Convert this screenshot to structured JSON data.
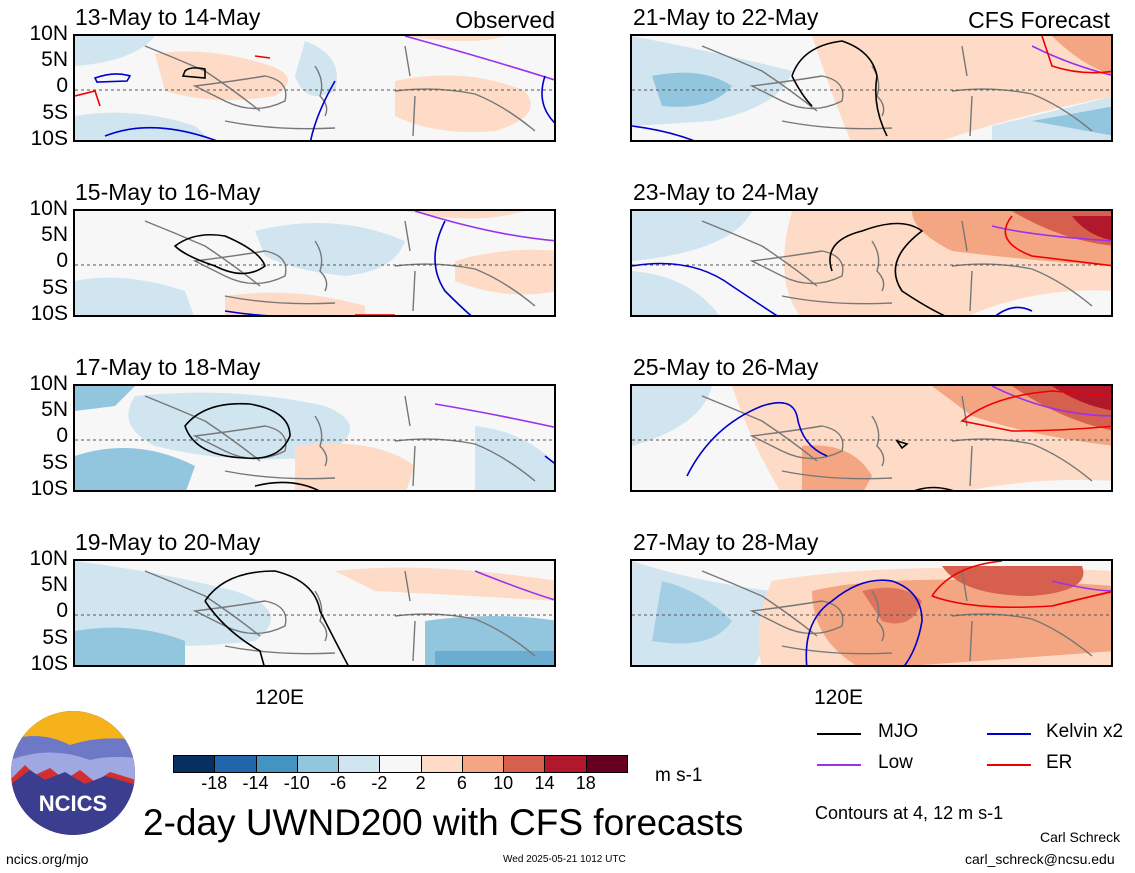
{
  "figure": {
    "main_title": "2-day UWND200 with CFS forecasts",
    "column_labels": {
      "left": "Observed",
      "right": "CFS Forecast"
    },
    "lat_labels": [
      "10N",
      "5N",
      "0",
      "5S",
      "10S"
    ],
    "lon_label": "120E",
    "panels": [
      {
        "date_range": "13-May to 14-May"
      },
      {
        "date_range": "15-May to 16-May"
      },
      {
        "date_range": "17-May to 18-May"
      },
      {
        "date_range": "19-May to 20-May"
      },
      {
        "date_range": "21-May to 22-May"
      },
      {
        "date_range": "23-May to 24-May"
      },
      {
        "date_range": "25-May to 26-May"
      },
      {
        "date_range": "27-May to 28-May"
      }
    ]
  },
  "colorbar": {
    "unit": "m s-1",
    "ticks": [
      "-18",
      "-14",
      "-10",
      "-6",
      "-2",
      "2",
      "6",
      "10",
      "14",
      "18"
    ],
    "colors": [
      "#053061",
      "#2166ac",
      "#4393c3",
      "#92c5de",
      "#d1e5f0",
      "#f7f7f7",
      "#fddbc7",
      "#f4a582",
      "#d6604d",
      "#b2182b",
      "#67001f"
    ]
  },
  "legend": {
    "items": [
      {
        "label": "MJO",
        "color": "#000000"
      },
      {
        "label": "Kelvin x2",
        "color": "#0000cc"
      },
      {
        "label": "Low",
        "color": "#9933ee"
      },
      {
        "label": "ER",
        "color": "#ee0000"
      }
    ],
    "contour_note": "Contours at 4, 12 m s-1"
  },
  "logo": {
    "text": "NCICS"
  },
  "footer": {
    "url": "ncics.org/mjo",
    "timestamp": "Wed 2025-05-21 1012 UTC",
    "author": "Carl Schreck",
    "email": "carl_schreck@ncsu.edu"
  }
}
